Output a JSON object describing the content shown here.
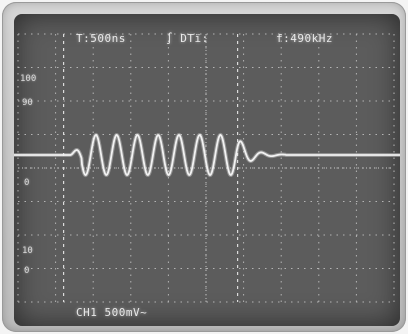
{
  "readouts": {
    "timebase": "T:500ns",
    "trigger": "∫ DTï:",
    "frequency": "f:490kHz",
    "channel": "CH1 500mV~"
  },
  "markers": {
    "level_100": "100",
    "level_90": "90",
    "level_0_upper": "0",
    "level_10": "10",
    "level_0_lower": "0"
  },
  "colors": {
    "screen": "#5c5c5c",
    "grid": "#b4b4b4",
    "trace": "#f2f2f2",
    "bezel": "#c8c8c8"
  },
  "signal": {
    "type": "burst-sine",
    "burst_cycles": 8,
    "description_visible": "sine burst with ringing decay"
  }
}
